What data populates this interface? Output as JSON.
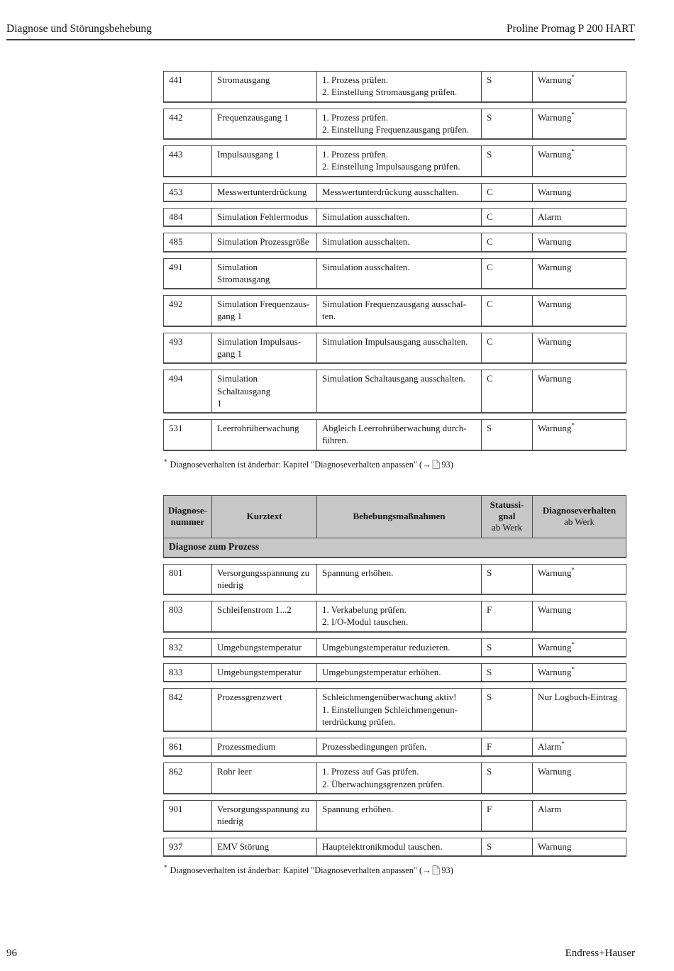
{
  "header": {
    "left": "Diagnose und Störungsbehebung",
    "right": "Proline Promag P 200 HART"
  },
  "footer": {
    "page_number": "96",
    "brand": "Endress+Hauser"
  },
  "footnote": {
    "marker": "*",
    "text_before_icon": "Diagnoseverhalten ist änderbar: Kapitel \"Diagnoseverhalten anpassen\" (→",
    "icon": "page-icon",
    "text_after_icon": "93)"
  },
  "table_continued": {
    "rows": [
      {
        "number": "441",
        "kurztext": [
          "Stromausgang"
        ],
        "massnahmen": [
          "1. Prozess prüfen.",
          "2. Einstellung Stromausgang prüfen."
        ],
        "signal": "S",
        "verhalten": "Warnung",
        "star": true
      },
      {
        "number": "442",
        "kurztext": [
          "Frequenzausgang 1"
        ],
        "massnahmen": [
          "1. Prozess prüfen.",
          "2. Einstellung Frequenzausgang prüfen."
        ],
        "signal": "S",
        "verhalten": "Warnung",
        "star": true
      },
      {
        "number": "443",
        "kurztext": [
          "Impulsausgang 1"
        ],
        "massnahmen": [
          "1. Prozess prüfen.",
          "2. Einstellung Impulsausgang prüfen."
        ],
        "signal": "S",
        "verhalten": "Warnung",
        "star": true
      },
      {
        "number": "453",
        "kurztext": [
          "Messwertunterdrückung"
        ],
        "massnahmen": [
          "Messwertunterdrückung ausschalten."
        ],
        "signal": "C",
        "verhalten": "Warnung",
        "star": false
      },
      {
        "number": "484",
        "kurztext": [
          "Simulation Fehlermodus"
        ],
        "massnahmen": [
          "Simulation ausschalten."
        ],
        "signal": "C",
        "verhalten": "Alarm",
        "star": false
      },
      {
        "number": "485",
        "kurztext": [
          "Simulation Prozessgröße"
        ],
        "massnahmen": [
          "Simulation ausschalten."
        ],
        "signal": "C",
        "verhalten": "Warnung",
        "star": false
      },
      {
        "number": "491",
        "kurztext": [
          "Simulation Stromausgang"
        ],
        "massnahmen": [
          "Simulation ausschalten."
        ],
        "signal": "C",
        "verhalten": "Warnung",
        "star": false
      },
      {
        "number": "492",
        "kurztext": [
          "Simulation Frequenzaus-",
          "gang 1"
        ],
        "massnahmen": [
          "Simulation Frequenzausgang ausschal-",
          "ten."
        ],
        "signal": "C",
        "verhalten": "Warnung",
        "star": false
      },
      {
        "number": "493",
        "kurztext": [
          "Simulation Impulsaus-",
          "gang 1"
        ],
        "massnahmen": [
          "Simulation Impulsausgang ausschalten."
        ],
        "signal": "C",
        "verhalten": "Warnung",
        "star": false
      },
      {
        "number": "494",
        "kurztext": [
          "Simulation Schaltausgang",
          "1"
        ],
        "massnahmen": [
          "Simulation Schaltausgang ausschalten."
        ],
        "signal": "C",
        "verhalten": "Warnung",
        "star": false
      },
      {
        "number": "531",
        "kurztext": [
          "Leerrohrüberwachung"
        ],
        "massnahmen": [
          "Abgleich Leerrohrüberwachung durch-",
          "führen."
        ],
        "signal": "S",
        "verhalten": "Warnung",
        "star": true
      }
    ]
  },
  "table_process": {
    "columns": [
      {
        "bold_lines": [
          "Diagnose-",
          "nummer"
        ],
        "regular_lines": []
      },
      {
        "bold_lines": [
          "Kurztext"
        ],
        "regular_lines": []
      },
      {
        "bold_lines": [
          "Behebungsmaßnahmen"
        ],
        "regular_lines": []
      },
      {
        "bold_lines": [
          "Statussi-",
          "gnal"
        ],
        "regular_lines": [
          "ab Werk"
        ]
      },
      {
        "bold_lines": [
          "Diagnoseverhalten"
        ],
        "regular_lines": [
          "ab Werk"
        ]
      }
    ],
    "section_title": "Diagnose zum Prozess",
    "rows": [
      {
        "number": "801",
        "kurztext": [
          "Versorgungsspannung zu",
          "niedrig"
        ],
        "massnahmen": [
          "Spannung erhöhen."
        ],
        "signal": "S",
        "verhalten": "Warnung",
        "star": true
      },
      {
        "number": "803",
        "kurztext": [
          "Schleifenstrom 1...2"
        ],
        "massnahmen": [
          "1. Verkabelung prüfen.",
          "2. I/O-Modul tauschen."
        ],
        "signal": "F",
        "verhalten": "Warnung",
        "star": false
      },
      {
        "number": "832",
        "kurztext": [
          "Umgebungstemperatur"
        ],
        "massnahmen": [
          "Umgebungstemperatur reduzieren."
        ],
        "signal": "S",
        "verhalten": "Warnung",
        "star": true
      },
      {
        "number": "833",
        "kurztext": [
          "Umgebungstemperatur"
        ],
        "massnahmen": [
          "Umgebungstemperatur erhöhen."
        ],
        "signal": "S",
        "verhalten": "Warnung",
        "star": true
      },
      {
        "number": "842",
        "kurztext": [
          "Prozessgrenzwert"
        ],
        "massnahmen": [
          "Schleichmengenüberwachung aktiv!",
          "1. Einstellungen Schleichmengenun-",
          "terdrückung prüfen."
        ],
        "signal": "S",
        "verhalten": "Nur Logbuch-Eintrag",
        "star": false
      },
      {
        "number": "861",
        "kurztext": [
          "Prozessmedium"
        ],
        "massnahmen": [
          "Prozessbedingungen prüfen."
        ],
        "signal": "F",
        "verhalten": "Alarm",
        "star": true
      },
      {
        "number": "862",
        "kurztext": [
          "Rohr leer"
        ],
        "massnahmen": [
          "1. Prozess auf Gas prüfen.",
          "2. Überwachungsgrenzen prüfen."
        ],
        "signal": "S",
        "verhalten": "Warnung",
        "star": false
      },
      {
        "number": "901",
        "kurztext": [
          "Versorgungsspannung zu",
          "niedrig"
        ],
        "massnahmen": [
          "Spannung erhöhen."
        ],
        "signal": "F",
        "verhalten": "Alarm",
        "star": false
      },
      {
        "number": "937",
        "kurztext": [
          "EMV Störung"
        ],
        "massnahmen": [
          "Hauptelektronikmodul tauschen."
        ],
        "signal": "S",
        "verhalten": "Warnung",
        "star": false
      }
    ]
  },
  "colors": {
    "table_header_bg": "#c7c7c7",
    "border": "#4e4e4e",
    "text": "#151515"
  }
}
